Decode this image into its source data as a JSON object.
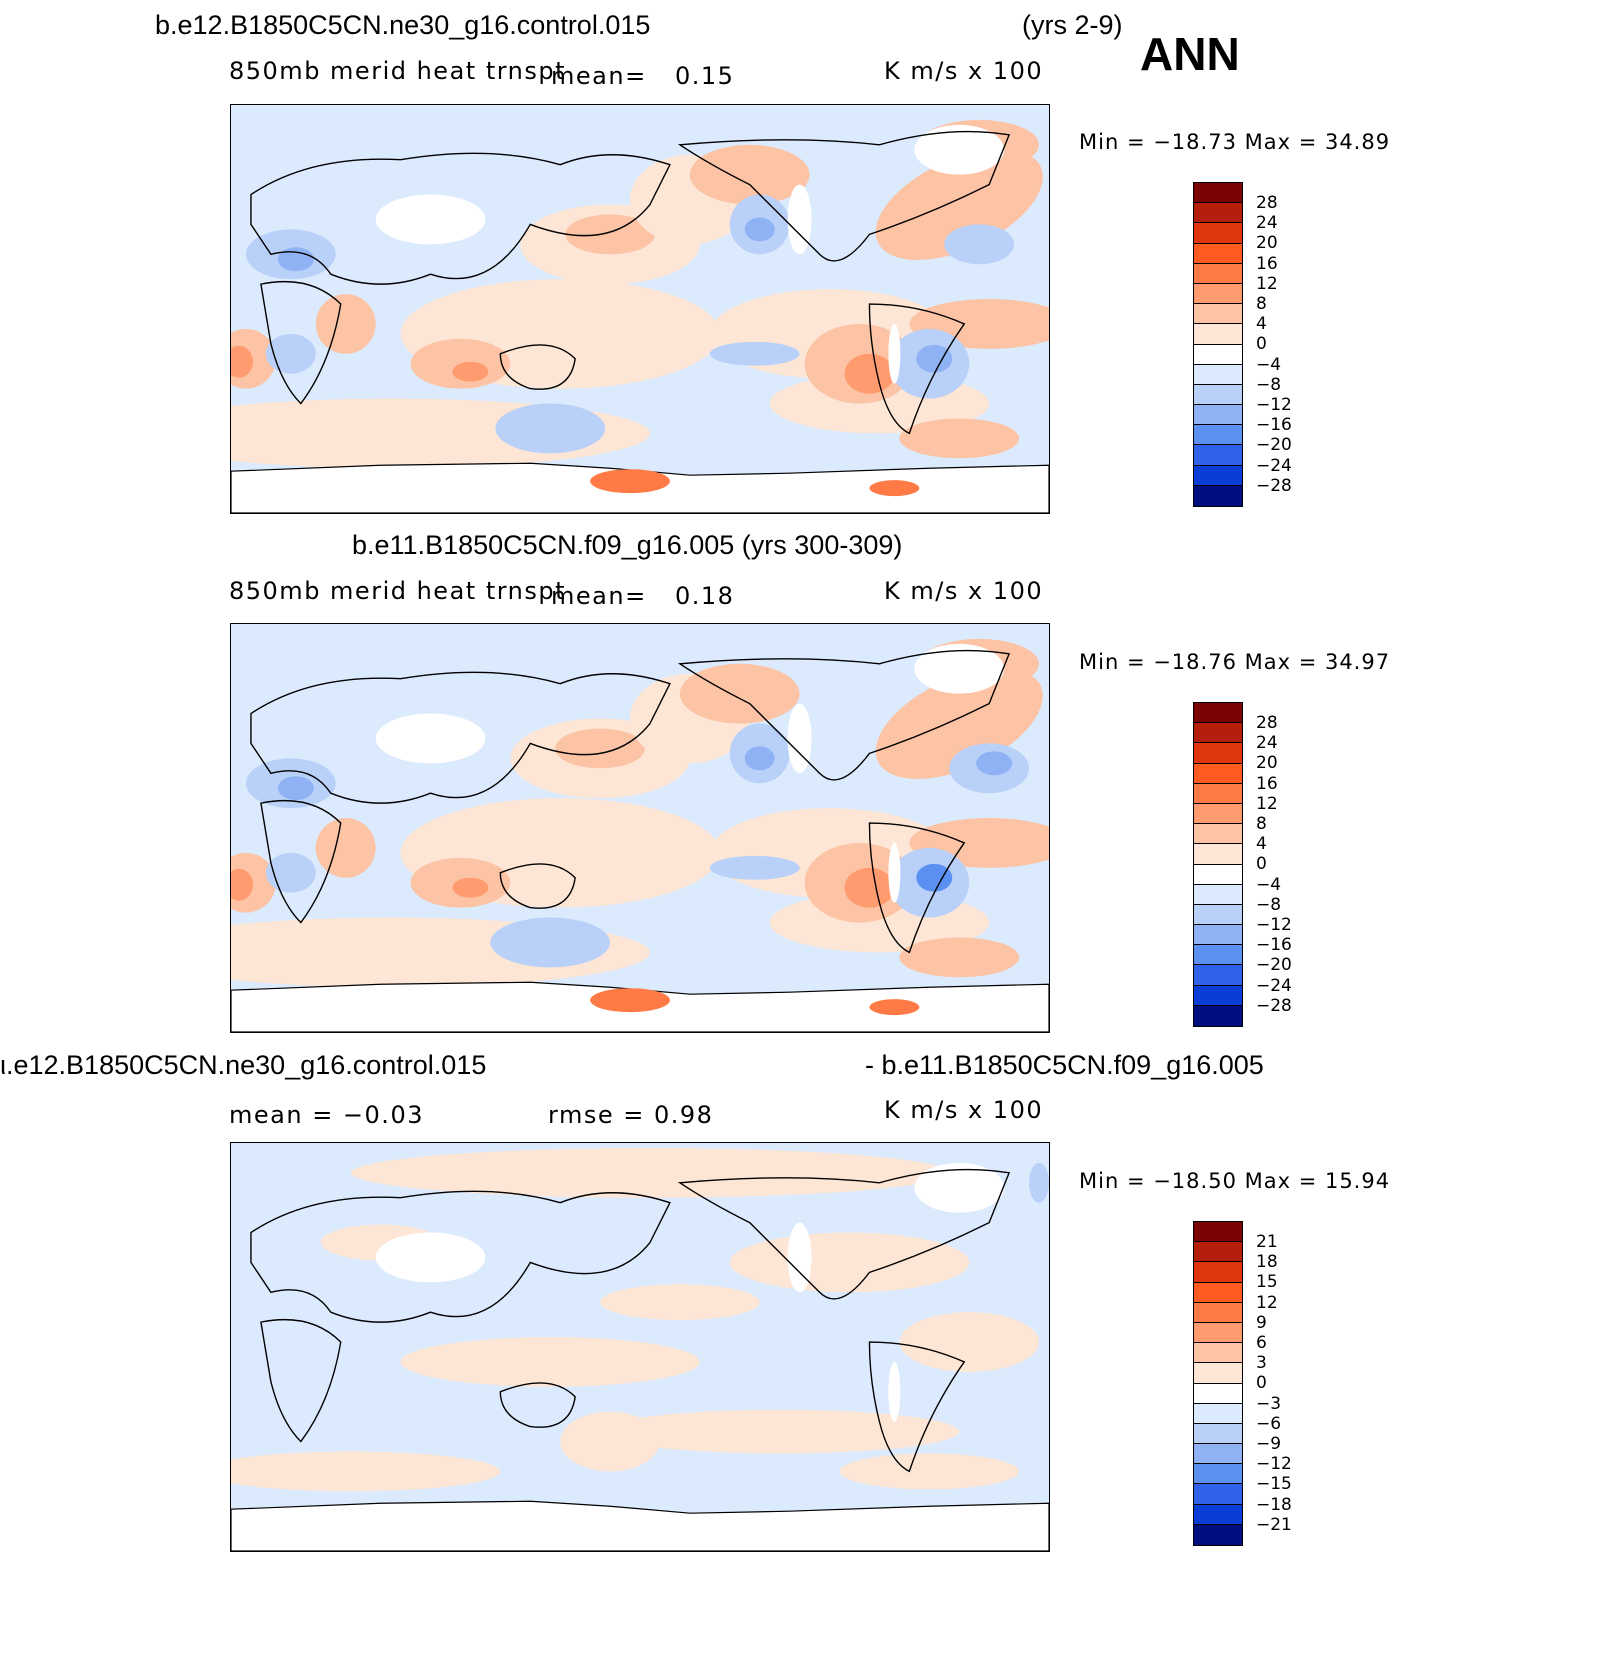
{
  "season": "ANN",
  "units": "K m/s x 100",
  "panels": [
    {
      "title_left": "b.e12.B1850C5CN.ne30_g16.control.015",
      "title_right": "(yrs 2-9)",
      "variable": "850mb merid heat trnspt",
      "mean_label": "mean=",
      "mean_value": "0.15",
      "units": "K m/s x 100",
      "min_max": "Min = −18.73 Max =   34.89",
      "legend_levels": [
        "28",
        "24",
        "20",
        "16",
        "12",
        "8",
        "4",
        "0",
        "−4",
        "−8",
        "−12",
        "−16",
        "−20",
        "−24",
        "−28"
      ]
    },
    {
      "title_left": "b.e11.B1850C5CN.f09_g16.005 (yrs 300-309)",
      "variable": "850mb merid heat trnspt",
      "mean_label": "mean=",
      "mean_value": "0.18",
      "units": "K m/s x 100",
      "min_max": "Min = −18.76 Max =   34.97",
      "legend_levels": [
        "28",
        "24",
        "20",
        "16",
        "12",
        "8",
        "4",
        "0",
        "−4",
        "−8",
        "−12",
        "−16",
        "−20",
        "−24",
        "−28"
      ]
    },
    {
      "title_left": "ι.e12.B1850C5CN.ne30_g16.control.015",
      "title_right": "- b.e11.B1850C5CN.f09_g16.005",
      "mean_text": "mean =   −0.03",
      "rmse_text": "rmse =    0.98",
      "units": "K m/s x 100",
      "min_max": "Min = −18.50 Max =   15.94",
      "legend_levels": [
        "21",
        "18",
        "15",
        "12",
        "9",
        "6",
        "3",
        "0",
        "−3",
        "−6",
        "−9",
        "−12",
        "−15",
        "−18",
        "−21"
      ]
    }
  ],
  "colors": {
    "palette": [
      "#7a0403",
      "#b41e0a",
      "#e0360f",
      "#ff5a1f",
      "#ff7a45",
      "#ff9b6e",
      "#fcc3a5",
      "#fde6d6",
      "#dbeafc",
      "#b9d1f8",
      "#8fb2f5",
      "#5b8ff2",
      "#2e62ea",
      "#0a3cd6",
      "#0a1f99",
      "#000f80"
    ],
    "land_white": "#ffffff",
    "coast": "#000000"
  }
}
